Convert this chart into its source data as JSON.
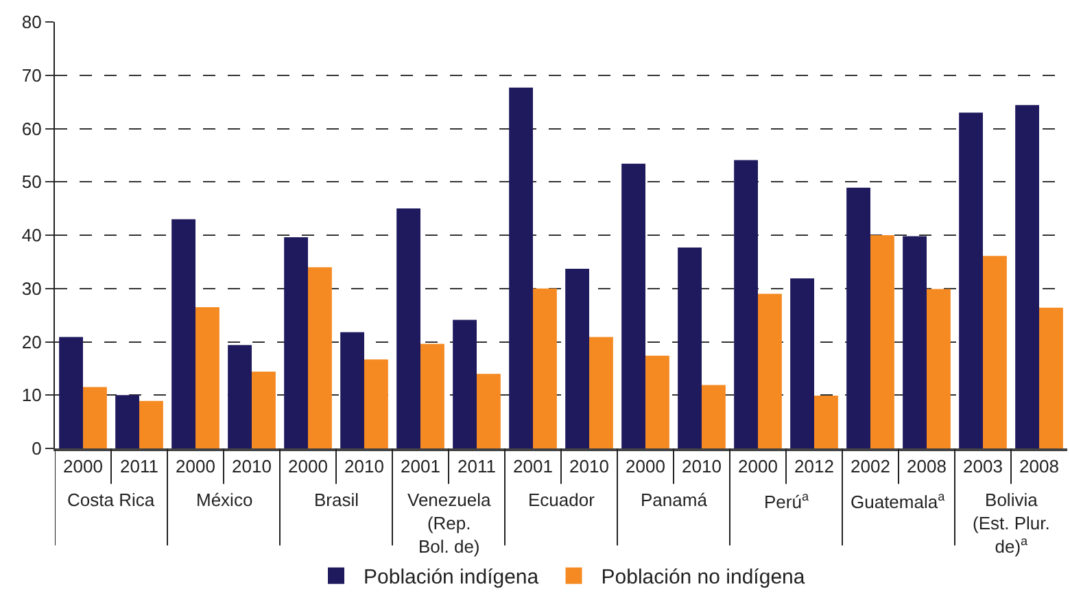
{
  "chart_data": {
    "type": "bar",
    "categories": [
      "2000",
      "2011",
      "2000",
      "2010",
      "2000",
      "2010",
      "2001",
      "2011",
      "2001",
      "2010",
      "2000",
      "2010",
      "2000",
      "2012",
      "2002",
      "2008",
      "2003",
      "2008"
    ],
    "annotations": [
      "Costa Rica",
      "México",
      "Brasil",
      "Venezuela\n(Rep.\nBol. de)",
      "Ecuador",
      "Panamá",
      "Perú$^{a}$",
      "Guatemala$^{a}$",
      "Bolivia\n(Est. Plur.\nde)$^{a}$"
    ],
    "series": [
      {
        "name": "Población indígena",
        "color": "#1f1a5e",
        "values": [
          20.9,
          10.0,
          43.0,
          19.4,
          39.6,
          21.8,
          45.0,
          24.1,
          67.7,
          33.7,
          53.4,
          37.7,
          54.1,
          31.9,
          48.9,
          39.8,
          63.0,
          64.4
        ]
      },
      {
        "name": "Población no indígena",
        "color": "#f58a22",
        "values": [
          11.5,
          8.9,
          26.5,
          14.4,
          34.0,
          16.7,
          19.6,
          14.0,
          30.0,
          20.9,
          17.4,
          11.9,
          29.0,
          9.9,
          40.0,
          29.9,
          36.1,
          26.4
        ]
      }
    ],
    "ylim": [
      0,
      80
    ],
    "yticks": [
      0,
      10,
      20,
      30,
      40,
      50,
      60,
      70,
      80
    ],
    "grid": "y",
    "legend": "bottom"
  }
}
